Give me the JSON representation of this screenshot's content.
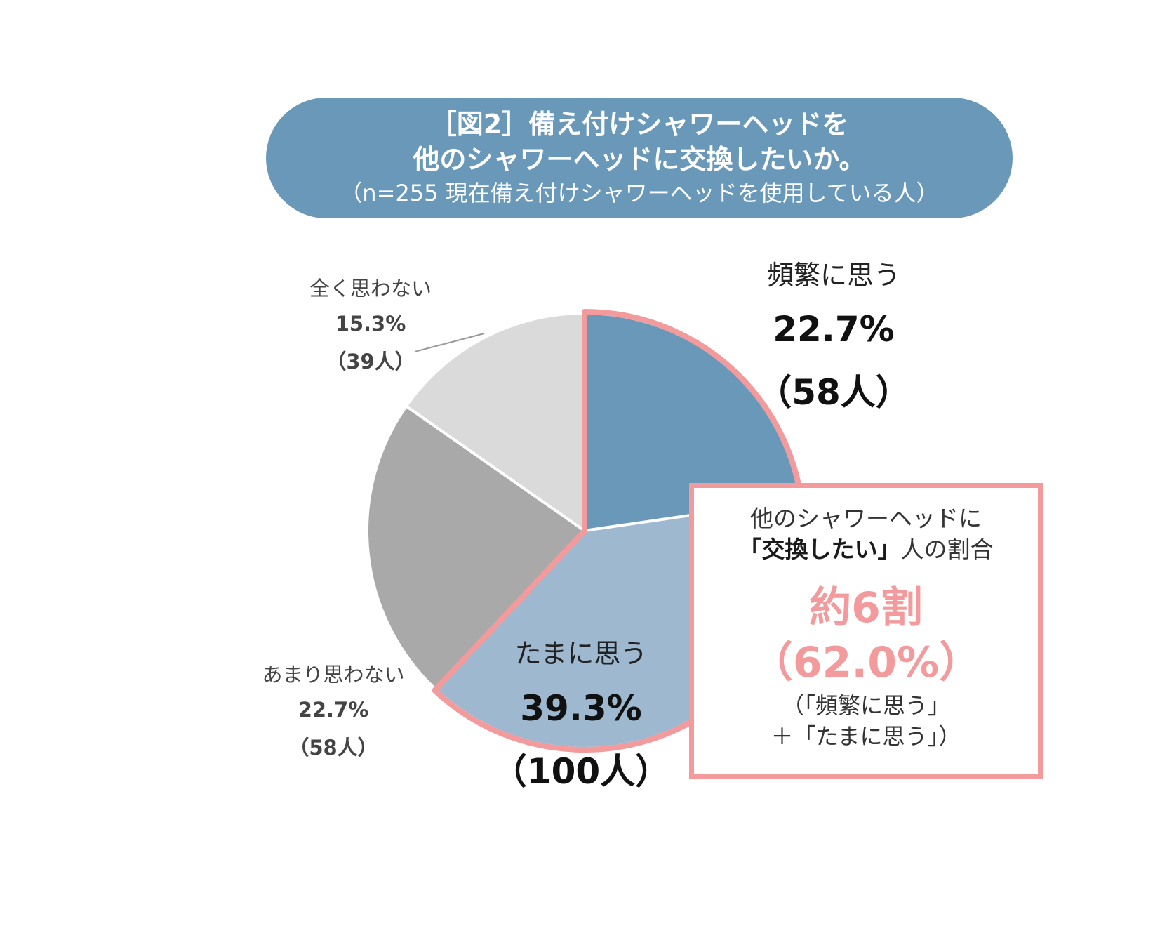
{
  "title": {
    "line1": "［図2］備え付けシャワーヘッドを",
    "line2": "他のシャワーヘッドに交換したいか。",
    "line3": "（n=255 現在備え付けシャワーヘッドを使用している人）"
  },
  "chart_data": {
    "type": "pie",
    "slices": [
      {
        "label": "頻繁に思う",
        "value": 22.7,
        "value_text": "22.7%",
        "count_text": "（58人）",
        "color": "#6a98b8"
      },
      {
        "label": "たまに思う",
        "value": 39.3,
        "value_text": "39.3%",
        "count_text": "（100人）",
        "color": "#9db8cf"
      },
      {
        "label": "あまり思わない",
        "value": 22.7,
        "value_text": "22.7%",
        "count_text": "（58人）",
        "color": "#a9a9a9"
      },
      {
        "label": "全く思わない",
        "value": 15.3,
        "value_text": "15.3%",
        "count_text": "（39人）",
        "color": "#dadada"
      }
    ],
    "highlight_color": "#f29a9c"
  },
  "callout": {
    "line1": "他のシャワーヘッドに",
    "line2_bold": "「交換したい」",
    "line2_rest": "人の割合",
    "big1": "約6割",
    "big2": "（62.0%）",
    "note1": "（「頻繁に思う」",
    "note2": "＋「たまに思う」）"
  }
}
